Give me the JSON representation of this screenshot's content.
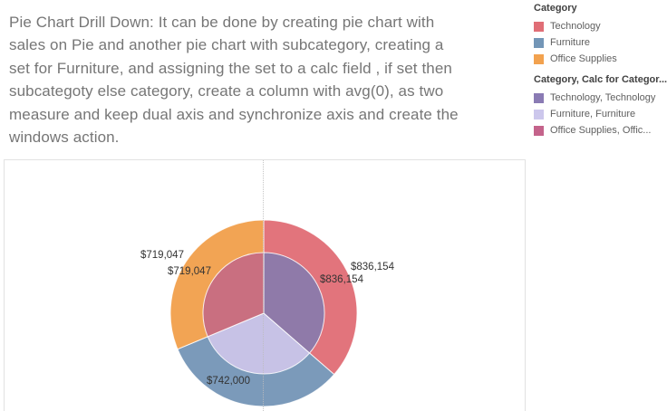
{
  "intro": {
    "lines": [
      "Pie Chart Drill Down: It can be done by creating pie chart with",
      "sales on Pie and another pie chart with subcategory, creating a",
      "set for Furniture, and assigning the set to a calc field , if set then",
      "subcategoty else category, create a column with avg(0), as two",
      "measure and keep dual axis and synchronize axis and create the",
      "windows action."
    ]
  },
  "legends": [
    {
      "title": "Category",
      "items": [
        {
          "label": "Technology",
          "color": "#E06E76"
        },
        {
          "label": "Furniture",
          "color": "#7396B7"
        },
        {
          "label": "Office Supplies",
          "color": "#F2A24F"
        }
      ]
    },
    {
      "title": "Category, Calc for Categor...",
      "items": [
        {
          "label": "Technology, Technology",
          "color": "#8A7BB4"
        },
        {
          "label": "Furniture, Furniture",
          "color": "#CCC7EC"
        },
        {
          "label": "Office Supplies, Offic...",
          "color": "#C4638B"
        }
      ]
    }
  ],
  "chart_data": {
    "type": "pie",
    "title": "",
    "categories": [
      "Technology",
      "Furniture",
      "Office Supplies"
    ],
    "values": [
      836154,
      742000,
      719047
    ],
    "value_labels": [
      "$836,154",
      "$742,000",
      "$719,047"
    ],
    "start_angle_deg": 0,
    "direction": "clockwise",
    "outer_radius_px": 103,
    "inner_radius_px": 67,
    "series": [
      {
        "name": "Category",
        "ring": "outer",
        "colors": [
          "#E2747C",
          "#7B9ABA",
          "#F2A454"
        ]
      },
      {
        "name": "Category, Calc for Category",
        "ring": "inner",
        "colors": [
          "#8F7AA9",
          "#C7C2E6",
          "#C96F80"
        ]
      }
    ],
    "labels": {
      "outer_technology": "$836,154",
      "inner_technology": "$836,154",
      "outer_office": "$719,047",
      "inner_office": "$719,047",
      "inner_furniture": "$742,000"
    }
  }
}
